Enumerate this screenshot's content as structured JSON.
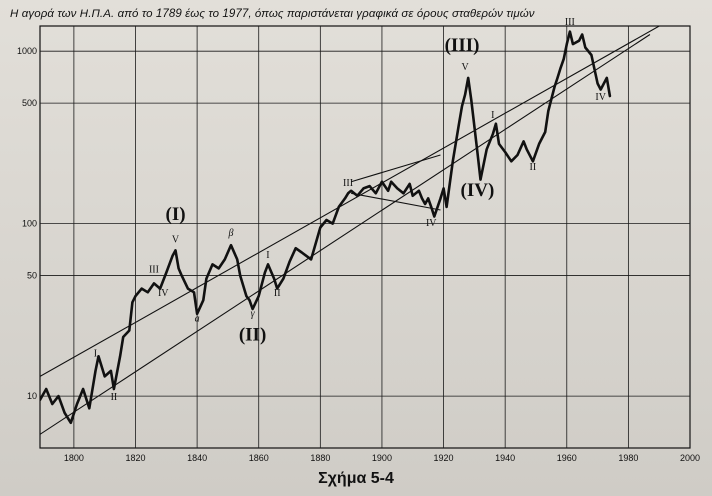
{
  "title": "Η αγορά των Η.Π.Α. από το 1789 έως το 1977, όπως παριστάνεται γραφικά σε όρους σταθερών τιμών",
  "caption": "Σχήμα 5-4",
  "colors": {
    "ink": "#111111",
    "paper": "#dcd9d3",
    "grid": "#1a1a1a"
  },
  "chart_data": {
    "type": "line",
    "title": "Η αγορά των Η.Π.Α. από το 1789 έως το 1977, όπως παριστάνεται γραφικά σε όρους σταθερών τιμών",
    "xlabel": "",
    "ylabel": "",
    "xlim": [
      1789,
      2000
    ],
    "ylim": [
      5,
      1400
    ],
    "yscale": "log",
    "grid": true,
    "x_ticks": [
      1800,
      1820,
      1840,
      1860,
      1880,
      1900,
      1920,
      1940,
      1960,
      1980,
      2000
    ],
    "y_ticks": [
      10,
      50,
      100,
      500,
      1000
    ],
    "series": [
      {
        "points": [
          [
            1789,
            9.5
          ],
          [
            1791,
            11
          ],
          [
            1793,
            9
          ],
          [
            1795,
            10
          ],
          [
            1797,
            8
          ],
          [
            1799,
            7
          ],
          [
            1801,
            9
          ],
          [
            1803,
            11
          ],
          [
            1805,
            8.5
          ],
          [
            1807,
            14
          ],
          [
            1808,
            17
          ],
          [
            1810,
            13
          ],
          [
            1812,
            14
          ],
          [
            1813,
            11
          ],
          [
            1815,
            17
          ],
          [
            1816,
            22
          ],
          [
            1818,
            24
          ],
          [
            1819,
            35
          ],
          [
            1820,
            38
          ],
          [
            1822,
            42
          ],
          [
            1824,
            40
          ],
          [
            1826,
            45
          ],
          [
            1828,
            42
          ],
          [
            1830,
            52
          ],
          [
            1832,
            65
          ],
          [
            1833,
            70
          ],
          [
            1834,
            55
          ],
          [
            1835,
            50
          ],
          [
            1837,
            42
          ],
          [
            1839,
            40
          ],
          [
            1840,
            30
          ],
          [
            1842,
            36
          ],
          [
            1843,
            48
          ],
          [
            1845,
            58
          ],
          [
            1847,
            55
          ],
          [
            1849,
            62
          ],
          [
            1851,
            75
          ],
          [
            1853,
            62
          ],
          [
            1854,
            50
          ],
          [
            1856,
            38
          ],
          [
            1857,
            36
          ],
          [
            1858,
            32
          ],
          [
            1860,
            38
          ],
          [
            1862,
            52
          ],
          [
            1863,
            58
          ],
          [
            1865,
            48
          ],
          [
            1866,
            42
          ],
          [
            1868,
            48
          ],
          [
            1870,
            60
          ],
          [
            1872,
            72
          ],
          [
            1874,
            68
          ],
          [
            1877,
            62
          ],
          [
            1880,
            95
          ],
          [
            1882,
            105
          ],
          [
            1884,
            100
          ],
          [
            1886,
            125
          ],
          [
            1888,
            140
          ],
          [
            1889,
            150
          ],
          [
            1890,
            155
          ],
          [
            1892,
            145
          ],
          [
            1894,
            160
          ],
          [
            1896,
            165
          ],
          [
            1898,
            150
          ],
          [
            1900,
            175
          ],
          [
            1902,
            155
          ],
          [
            1903,
            175
          ],
          [
            1905,
            160
          ],
          [
            1907,
            150
          ],
          [
            1909,
            170
          ],
          [
            1910,
            145
          ],
          [
            1912,
            155
          ],
          [
            1913,
            140
          ],
          [
            1914,
            130
          ],
          [
            1915,
            140
          ],
          [
            1916,
            125
          ],
          [
            1917,
            110
          ],
          [
            1919,
            140
          ],
          [
            1920,
            160
          ],
          [
            1921,
            125
          ],
          [
            1923,
            230
          ],
          [
            1925,
            380
          ],
          [
            1926,
            480
          ],
          [
            1927,
            560
          ],
          [
            1928,
            700
          ],
          [
            1929,
            520
          ],
          [
            1931,
            260
          ],
          [
            1932,
            180
          ],
          [
            1934,
            270
          ],
          [
            1936,
            330
          ],
          [
            1937,
            380
          ],
          [
            1938,
            290
          ],
          [
            1940,
            260
          ],
          [
            1942,
            230
          ],
          [
            1944,
            250
          ],
          [
            1946,
            300
          ],
          [
            1947,
            270
          ],
          [
            1949,
            230
          ],
          [
            1951,
            290
          ],
          [
            1953,
            340
          ],
          [
            1954,
            450
          ],
          [
            1956,
            620
          ],
          [
            1957,
            700
          ],
          [
            1958,
            800
          ],
          [
            1959,
            900
          ],
          [
            1960,
            1100
          ],
          [
            1961,
            1300
          ],
          [
            1962,
            1100
          ],
          [
            1964,
            1150
          ],
          [
            1965,
            1250
          ],
          [
            1966,
            1050
          ],
          [
            1968,
            950
          ],
          [
            1970,
            650
          ],
          [
            1971,
            600
          ],
          [
            1973,
            700
          ],
          [
            1974,
            550
          ]
        ]
      }
    ],
    "channel_lines": [
      {
        "from": [
          1789,
          13
        ],
        "to": [
          1993,
          1500
        ]
      },
      {
        "from": [
          1789,
          6
        ],
        "to": [
          1987,
          1250
        ]
      },
      {
        "from": [
          1890,
          175
        ],
        "to": [
          1919,
          250
        ]
      },
      {
        "from": [
          1890,
          150
        ],
        "to": [
          1919,
          120
        ]
      }
    ],
    "wave_labels": [
      {
        "text": "I",
        "x": 1807,
        "y": 17
      },
      {
        "text": "II",
        "x": 1813,
        "y": 9.5
      },
      {
        "text": "III",
        "x": 1826,
        "y": 52
      },
      {
        "text": "IV",
        "x": 1829,
        "y": 38
      },
      {
        "text": "V",
        "x": 1833,
        "y": 78
      },
      {
        "text": "(I)",
        "x": 1833,
        "y": 105
      },
      {
        "text": "a",
        "x": 1840,
        "y": 27
      },
      {
        "text": "β",
        "x": 1851,
        "y": 85
      },
      {
        "text": "γ",
        "x": 1858,
        "y": 29
      },
      {
        "text": "(II)",
        "x": 1858,
        "y": 21
      },
      {
        "text": "I",
        "x": 1863,
        "y": 63
      },
      {
        "text": "II",
        "x": 1866,
        "y": 38
      },
      {
        "text": "III",
        "x": 1889,
        "y": 165
      },
      {
        "text": "IV",
        "x": 1916,
        "y": 97
      },
      {
        "text": "V",
        "x": 1927,
        "y": 780
      },
      {
        "text": "(III)",
        "x": 1926,
        "y": 1000
      },
      {
        "text": "(IV)",
        "x": 1931,
        "y": 145
      },
      {
        "text": "I",
        "x": 1936,
        "y": 410
      },
      {
        "text": "II",
        "x": 1949,
        "y": 205
      },
      {
        "text": "III",
        "x": 1961,
        "y": 1420
      },
      {
        "text": "IV",
        "x": 1971,
        "y": 520
      }
    ]
  }
}
